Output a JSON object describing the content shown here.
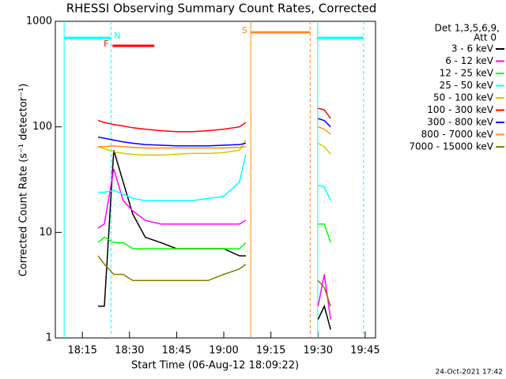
{
  "chart_data": {
    "type": "line",
    "title": "RHESSI Observing Summary Count Rates, Corrected",
    "xlabel": "Start Time (06-Aug-12 18:09:22)",
    "ylabel": "Corrected Count Rate (s⁻¹ detector⁻¹)",
    "footer": "24-Oct-2021 17:42",
    "legend_title": [
      "Det 1,3,5,6,9,",
      "Att 0"
    ],
    "log_y": true,
    "xlim": [
      6.4,
      108.3
    ],
    "xticks": [
      {
        "value": 15,
        "label": "18:15"
      },
      {
        "value": 30,
        "label": "18:30"
      },
      {
        "value": 45,
        "label": "18:45"
      },
      {
        "value": 60,
        "label": "19:00"
      },
      {
        "value": 75,
        "label": "19:15"
      },
      {
        "value": 90,
        "label": "19:30"
      },
      {
        "value": 105,
        "label": "19:45"
      }
    ],
    "ylim": [
      1,
      1000
    ],
    "yticks": [
      1,
      10,
      100,
      1000
    ],
    "x": [
      20,
      22,
      25,
      28,
      31,
      35,
      40,
      45,
      50,
      55,
      60,
      65,
      67,
      78,
      90,
      92,
      94
    ],
    "series": [
      {
        "name": "3 - 6 keV",
        "color": "#000000",
        "values": [
          2,
          2,
          60,
          30,
          15,
          9,
          8,
          7,
          7,
          7,
          7,
          6,
          6,
          null,
          1.5,
          2,
          1.2
        ]
      },
      {
        "name": "6 - 12 keV",
        "color": "#ff00ff",
        "values": [
          11,
          12,
          40,
          20,
          16,
          13,
          12,
          12,
          12,
          12,
          12,
          12,
          13,
          null,
          2,
          4,
          1.5
        ]
      },
      {
        "name": "12 - 25 keV",
        "color": "#00ff00",
        "values": [
          8,
          9,
          8,
          8,
          7,
          7,
          7,
          7,
          7,
          7,
          7,
          7,
          8,
          null,
          12,
          12,
          8
        ]
      },
      {
        "name": "25 - 50 keV",
        "color": "#00ffff",
        "values": [
          24,
          24,
          25,
          23,
          21,
          20,
          20,
          20,
          20,
          21,
          22,
          30,
          55,
          null,
          28,
          27,
          20
        ]
      },
      {
        "name": "50 - 100 keV",
        "color": "#cccc00",
        "values": [
          65,
          62,
          58,
          56,
          55,
          54,
          54,
          55,
          56,
          56,
          57,
          60,
          75,
          null,
          70,
          65,
          55
        ]
      },
      {
        "name": "100 - 300 keV",
        "color": "#ff0000",
        "values": [
          115,
          110,
          105,
          102,
          98,
          95,
          92,
          90,
          90,
          92,
          95,
          100,
          110,
          null,
          150,
          145,
          120
        ]
      },
      {
        "name": "300 - 800 keV",
        "color": "#0000ff",
        "values": [
          80,
          78,
          75,
          72,
          70,
          68,
          67,
          66,
          66,
          66,
          67,
          68,
          70,
          null,
          120,
          115,
          100
        ]
      },
      {
        "name": "800 - 7000 keV",
        "color": "#ff8c1a",
        "values": [
          65,
          65,
          66,
          65,
          64,
          63,
          63,
          63,
          63,
          63,
          63,
          64,
          65,
          null,
          100,
          95,
          85
        ]
      },
      {
        "name": "7000 - 15000 keV",
        "color": "#808000",
        "values": [
          6,
          5,
          4,
          4,
          3.5,
          3.5,
          3.5,
          3.5,
          3.5,
          3.5,
          4,
          4.5,
          5,
          null,
          3.5,
          3,
          2
        ]
      }
    ],
    "intervals": [
      {
        "label": "N",
        "color": "#00ffff",
        "start": 9.2,
        "end": 24.1,
        "level": 697
      },
      {
        "color": "#00ffff",
        "start": 89.9,
        "end": 104.5,
        "level": 697
      },
      {
        "label": "F",
        "color": "#ff0000",
        "start": 24.6,
        "end": 37.9,
        "level": 586
      },
      {
        "label": "S",
        "color": "#ff8c1a",
        "start": 68.6,
        "end": 87.5,
        "level": 785
      }
    ]
  }
}
